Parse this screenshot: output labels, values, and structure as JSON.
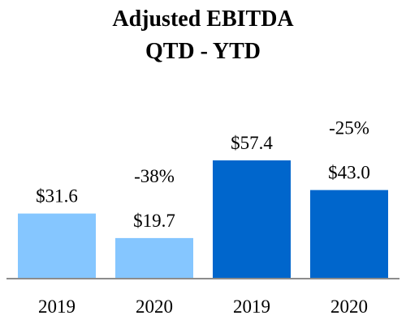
{
  "chart_data": {
    "type": "bar",
    "title": "Adjusted EBITDA",
    "subtitle": "QTD - YTD",
    "categories": [
      "2019",
      "2020",
      "2019",
      "2020"
    ],
    "values": [
      31.6,
      19.7,
      57.4,
      43.0
    ],
    "value_labels": [
      "$31.6",
      "$19.7",
      "$57.4",
      "$43.0"
    ],
    "groups": [
      {
        "categories_index": [
          0,
          1
        ],
        "change_label": "-38%",
        "color": "#85c6ff"
      },
      {
        "categories_index": [
          2,
          3
        ],
        "change_label": "-25%",
        "color": "#0066cc"
      }
    ],
    "ylim": [
      0,
      70
    ],
    "grid": false,
    "axis_color": "#8c8c8c"
  }
}
